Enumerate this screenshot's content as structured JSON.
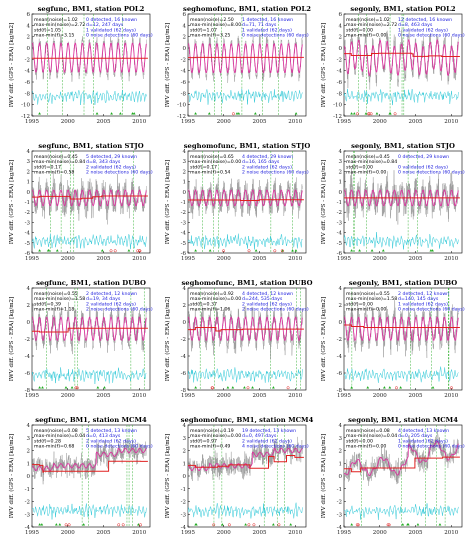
{
  "ylabel": "IWV diff. (GPS - ERA) [kg/m2]",
  "x_ticks": [
    "1995",
    "2000",
    "2005",
    "2010"
  ],
  "colors": {
    "raw": "#9a9a9a",
    "mean": "#e0209a",
    "seg": "#e02020",
    "noise": "#33c9d8",
    "valid": "#22aa22",
    "stat_blue": "#2020dd"
  },
  "chart_data": [
    {
      "type": "line",
      "title": "segfunc, BM1, station POL2",
      "ylim": [
        -12,
        6
      ],
      "yticks": [
        "6",
        "4",
        "2",
        "0",
        "-2",
        "-4",
        "-6",
        "-8",
        "-10",
        "-12"
      ],
      "xlim": [
        1995,
        2011.5
      ],
      "x_ticks": [
        1995,
        2000,
        2005,
        2010
      ],
      "stats": [
        "mean(noise)=1.02",
        "max-min(noise)=2.72",
        "std(f)=1.05",
        "max-min(f)=3.15"
      ],
      "detect": [
        "0 detected, 16 known",
        "d=12, 247 days",
        "1 validated (62 days)",
        "0 noise detections (60 days)"
      ],
      "level": -1.7,
      "amp": 3.0,
      "sigma": 0.8,
      "n_breaks": 0,
      "noise_level": -9.3,
      "seg_level": -1.8
    },
    {
      "type": "line",
      "title": "seghomofunc, BM1, station POL2",
      "ylim": [
        -12,
        6
      ],
      "yticks": [
        "6",
        "4",
        "2",
        "0",
        "-2",
        "-4",
        "-6",
        "-8",
        "-10",
        "-12"
      ],
      "xlim": [
        1995,
        2011.5
      ],
      "x_ticks": [
        1995,
        2000,
        2005,
        2010
      ],
      "stats": [
        "mean(noise)=2.50",
        "max-min(noise)=8.00",
        "std(f)=1.07",
        "max-min(f)=3.25"
      ],
      "detect": [
        "1 detected, 16 known",
        "d=71, 71 days",
        "1 validated (62 days)",
        "0 noise detections (60 days)"
      ],
      "level": -1.8,
      "amp": 3.0,
      "sigma": 0.8,
      "n_breaks": 1,
      "noise_level": -9.3,
      "seg_level": -1.8
    },
    {
      "type": "line",
      "title": "segonly, BM1, station POL2",
      "ylim": [
        -12,
        6
      ],
      "yticks": [
        "6",
        "4",
        "2",
        "0",
        "-2",
        "-4",
        "-6",
        "-8",
        "-10",
        "-12"
      ],
      "xlim": [
        1995,
        2011.5
      ],
      "x_ticks": [
        1995,
        2000,
        2005,
        2010
      ],
      "stats": [
        "mean(noise)=1.02",
        "max-min(noise)=2.72",
        "std(f)=0.00",
        "max-min(f)=0.00"
      ],
      "detect": [
        "12 detected, 16 known",
        "d=8, 463 days",
        "1 validated (62 days)",
        "0 noise detections (60 days)"
      ],
      "level": -1.7,
      "amp": 3.0,
      "sigma": 1.2,
      "n_breaks": 12,
      "noise_level": -9.3,
      "seg_level": -1.2
    },
    {
      "type": "line",
      "title": "segfunc, BM1, station STJO",
      "ylim": [
        -6,
        4
      ],
      "yticks": [
        "4",
        "3",
        "2",
        "1",
        "0",
        "-1",
        "-2",
        "-3",
        "-4",
        "-5",
        "-6"
      ],
      "xlim": [
        1995,
        2011.5
      ],
      "x_ticks": [
        1995,
        2000,
        2005,
        2010
      ],
      "stats": [
        "mean(noise)=0.45",
        "max-min(noise)=0.84",
        "std(f)=0.17",
        "max-min(f)=0.58"
      ],
      "detect": [
        "5 detected, 29 known",
        "d=8, 343 days",
        "2 validated (62 days)",
        "2 noise detections (60 days)"
      ],
      "level": -0.6,
      "amp": 0.9,
      "sigma": 0.9,
      "n_breaks": 5,
      "noise_level": -5.3,
      "seg_level": -0.7
    },
    {
      "type": "line",
      "title": "seghomofunc, BM1, station STJO",
      "ylim": [
        -6,
        4
      ],
      "yticks": [
        "4",
        "3",
        "2",
        "1",
        "0",
        "-1",
        "-2",
        "-3",
        "-4",
        "-5",
        "-6"
      ],
      "xlim": [
        1995,
        2011.5
      ],
      "x_ticks": [
        1995,
        2000,
        2005,
        2010
      ],
      "stats": [
        "mean(noise)=0.65",
        "max-min(noise)=0.00",
        "std(f)=0.17",
        "max-min(f)=0.54"
      ],
      "detect": [
        "4 detected, 29 known",
        "d=16, 165 days",
        "2 validated (62 days)",
        "2 noise detections (60 days)"
      ],
      "level": -0.6,
      "amp": 0.9,
      "sigma": 0.9,
      "n_breaks": 4,
      "noise_level": -5.3,
      "seg_level": -0.7
    },
    {
      "type": "line",
      "title": "segonly, BM1, station STJO",
      "ylim": [
        -6,
        4
      ],
      "yticks": [
        "4",
        "3",
        "2",
        "1",
        "0",
        "-1",
        "-2",
        "-3",
        "-4",
        "-5",
        "-6"
      ],
      "xlim": [
        1995,
        2011.5
      ],
      "x_ticks": [
        1995,
        2000,
        2005,
        2010
      ],
      "stats": [
        "mean(noise)=0.45",
        "max-min(noise)=0.84",
        "std(f)=0.00",
        "max-min(f)=0.00"
      ],
      "detect": [
        "0 detected, 29 known",
        "",
        "0 validated (62 days)",
        "0 noise detections (60 days)"
      ],
      "level": -0.6,
      "amp": 0.9,
      "sigma": 1.0,
      "n_breaks": 0,
      "noise_level": -5.3,
      "seg_level": -0.6
    },
    {
      "type": "line",
      "title": "segfunc, BM1, station DUBO",
      "ylim": [
        -8,
        4
      ],
      "yticks": [
        "4",
        "2",
        "0",
        "-2",
        "-4",
        "-6",
        "-8"
      ],
      "xlim": [
        1995,
        2011.5
      ],
      "x_ticks": [
        1995,
        2000,
        2005,
        2010
      ],
      "stats": [
        "mean(noise)=0.55",
        "max-min(noise)=1.58",
        "std(f)=0.39",
        "max-min(f)=1.18"
      ],
      "detect": [
        "2 detected, 12 known",
        "d=19, 34 days",
        "2 validated (62 days)",
        "2 noise detections (60 days)"
      ],
      "level": -0.8,
      "amp": 1.6,
      "sigma": 0.9,
      "n_breaks": 2,
      "noise_level": -6.8,
      "seg_level": -0.9
    },
    {
      "type": "line",
      "title": "seghomofunc, BM1, station DUBO",
      "ylim": [
        -8,
        4
      ],
      "yticks": [
        "4",
        "2",
        "0",
        "-2",
        "-4",
        "-6",
        "-8"
      ],
      "xlim": [
        1995,
        2011.5
      ],
      "x_ticks": [
        1995,
        2000,
        2005,
        2010
      ],
      "stats": [
        "mean(noise)=0.92",
        "max-min(noise)=0.00",
        "std(f)=0.37",
        "max-min(f)=1.06"
      ],
      "detect": [
        "4 detected, 12 known",
        "d=244, 535 days",
        "2 validated (62 days)",
        "2 noise detections (60 days)"
      ],
      "level": -0.8,
      "amp": 1.6,
      "sigma": 0.9,
      "n_breaks": 4,
      "noise_level": -6.8,
      "seg_level": -0.9
    },
    {
      "type": "line",
      "title": "segonly, BM1, station DUBO",
      "ylim": [
        -8,
        4
      ],
      "yticks": [
        "4",
        "2",
        "0",
        "-2",
        "-4",
        "-6",
        "-8"
      ],
      "xlim": [
        1995,
        2011.5
      ],
      "x_ticks": [
        1995,
        2000,
        2005,
        2010
      ],
      "stats": [
        "mean(noise)=0.55",
        "max-min(noise)=1.58",
        "std(f)=0.00",
        "max-min(f)=0.00"
      ],
      "detect": [
        "2 detected, 12 known",
        "d=140, 145 days",
        "1 validated (62 days)",
        "0 noise detections (60 days)"
      ],
      "level": -0.8,
      "amp": 1.6,
      "sigma": 1.1,
      "n_breaks": 2,
      "noise_level": -6.8,
      "seg_level": -0.5
    },
    {
      "type": "line",
      "title": "segfunc, BM1, station MCM4",
      "ylim": [
        -4,
        4
      ],
      "yticks": [
        "4",
        "3",
        "2",
        "1",
        "0",
        "-1",
        "-2",
        "-3",
        "-4"
      ],
      "xlim": [
        1995,
        2011.5
      ],
      "x_ticks": [
        1995,
        2000,
        2005,
        2010
      ],
      "stats": [
        "mean(noise)=0.08",
        "max-min(noise)=0.04",
        "std(f)=0.28",
        "max-min(f)=0.68"
      ],
      "detect": [
        "5 detected, 13 known",
        "d=0, 413 days",
        "2 validated (62 days)",
        "0 noise detections (60 days)"
      ],
      "level": 0.8,
      "amp": 0.2,
      "sigma": 0.6,
      "n_breaks": 5,
      "noise_level": -3.1,
      "seg_level": 0.6
    },
    {
      "type": "line",
      "title": "seghomofunc, BM1, station MCM4",
      "ylim": [
        -4,
        4
      ],
      "yticks": [
        "4",
        "3",
        "2",
        "1",
        "0",
        "-1",
        "-2",
        "-3",
        "-4"
      ],
      "xlim": [
        1995,
        2011.5
      ],
      "x_ticks": [
        1995,
        2000,
        2005,
        2010
      ],
      "stats": [
        "mean(noise)=0.19",
        "max-min(noise)=0.00",
        "std(f)=0.97",
        "max-min(f)=0.49"
      ],
      "detect": [
        "19 detected, 13 known",
        "d=0, 497 days",
        "2 validated (62 days)",
        "4 noise detections (60 days)"
      ],
      "level": 0.8,
      "amp": 0.2,
      "sigma": 0.6,
      "n_breaks": 19,
      "noise_level": -3.1,
      "seg_level": 0.6
    },
    {
      "type": "line",
      "title": "segonly, BM1, station MCM4",
      "ylim": [
        -4,
        4
      ],
      "yticks": [
        "4",
        "3",
        "2",
        "1",
        "0",
        "-1",
        "-2",
        "-3",
        "-4"
      ],
      "xlim": [
        1995,
        2011.5
      ],
      "x_ticks": [
        1995,
        2000,
        2005,
        2010
      ],
      "stats": [
        "mean(noise)=0.08",
        "max-min(noise)=0.04",
        "std(f)=0.00",
        "max-min(f)=0.00"
      ],
      "detect": [
        "4 detected, 13 known",
        "d=0, 205 days",
        "1 validated (62 days)",
        "0 noise detections (60 days)"
      ],
      "level": 0.8,
      "amp": 0.2,
      "sigma": 0.6,
      "n_breaks": 4,
      "noise_level": -3.1,
      "seg_level": 0.6
    }
  ]
}
